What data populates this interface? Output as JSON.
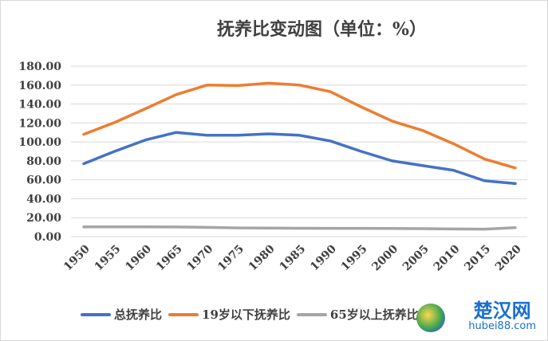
{
  "chart_data": {
    "type": "line",
    "title": "抚养比变动图（单位：%）",
    "x": [
      "1950",
      "1955",
      "1960",
      "1965",
      "1970",
      "1975",
      "1980",
      "1985",
      "1990",
      "1995",
      "2000",
      "2005",
      "2010",
      "2015",
      "2020"
    ],
    "ylim": [
      0,
      180
    ],
    "yticks": [
      "0.00",
      "20.00",
      "40.00",
      "60.00",
      "80.00",
      "100.00",
      "120.00",
      "140.00",
      "160.00",
      "180.00"
    ],
    "grid": true,
    "legend_position": "bottom",
    "series": [
      {
        "name": "总抚养比",
        "color": "#4472c4",
        "values": [
          77,
          90,
          102,
          110,
          107,
          107,
          108.5,
          107,
          101,
          90,
          80,
          75,
          70,
          59,
          56
        ]
      },
      {
        "name": "19岁以下抚养比",
        "color": "#ed7d31",
        "values": [
          108,
          120.5,
          135,
          150,
          160,
          159.5,
          162,
          160,
          153,
          137,
          122,
          112,
          98,
          82,
          72.5
        ]
      },
      {
        "name": "65岁以上抚养比",
        "color": "#a5a5a5",
        "values": [
          10.3,
          10.3,
          10.3,
          10.2,
          9.8,
          9.2,
          9,
          8.8,
          8.7,
          8.7,
          8.6,
          8.4,
          8.1,
          7.9,
          9.5
        ]
      }
    ]
  },
  "watermark": {
    "cn": "楚汉网",
    "en": "hubei88.com"
  }
}
